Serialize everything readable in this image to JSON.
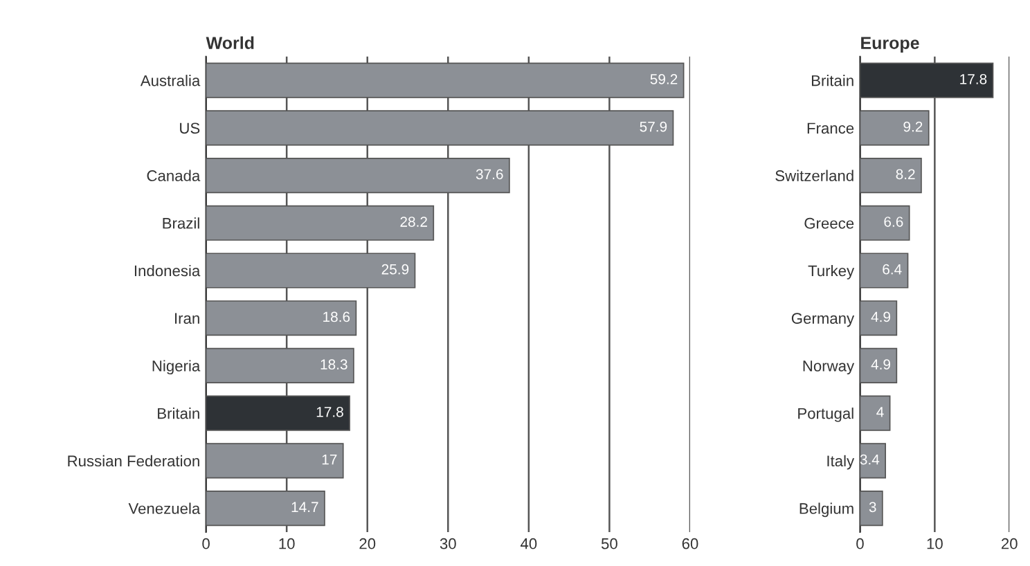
{
  "chart_data": [
    {
      "type": "bar",
      "title": "World",
      "orientation": "horizontal",
      "categories": [
        "Australia",
        "US",
        "Canada",
        "Brazil",
        "Indonesia",
        "Iran",
        "Nigeria",
        "Britain",
        "Russian Federation",
        "Venezuela"
      ],
      "values": [
        59.2,
        57.9,
        37.6,
        28.2,
        25.9,
        18.6,
        18.3,
        17.8,
        17,
        14.7
      ],
      "colors": [
        "#8c9096",
        "#8c9096",
        "#8c9096",
        "#8c9096",
        "#8c9096",
        "#8c9096",
        "#8c9096",
        "#2e3236",
        "#8c9096",
        "#8c9096"
      ],
      "xlim": [
        0,
        60
      ],
      "xticks": [
        0,
        10,
        20,
        30,
        40,
        50,
        60
      ],
      "grid": "x",
      "data_labels": true
    },
    {
      "type": "bar",
      "title": "Europe",
      "orientation": "horizontal",
      "categories": [
        "Britain",
        "France",
        "Switzerland",
        "Greece",
        "Turkey",
        "Germany",
        "Norway",
        "Portugal",
        "Italy",
        "Belgium"
      ],
      "values": [
        17.8,
        9.2,
        8.2,
        6.6,
        6.4,
        4.9,
        4.9,
        4,
        3.4,
        3
      ],
      "colors": [
        "#2e3236",
        "#8c9096",
        "#8c9096",
        "#8c9096",
        "#8c9096",
        "#8c9096",
        "#8c9096",
        "#8c9096",
        "#8c9096",
        "#8c9096"
      ],
      "xlim": [
        0,
        20
      ],
      "xticks": [
        0,
        10,
        20
      ],
      "grid": "x",
      "data_labels": true
    }
  ]
}
